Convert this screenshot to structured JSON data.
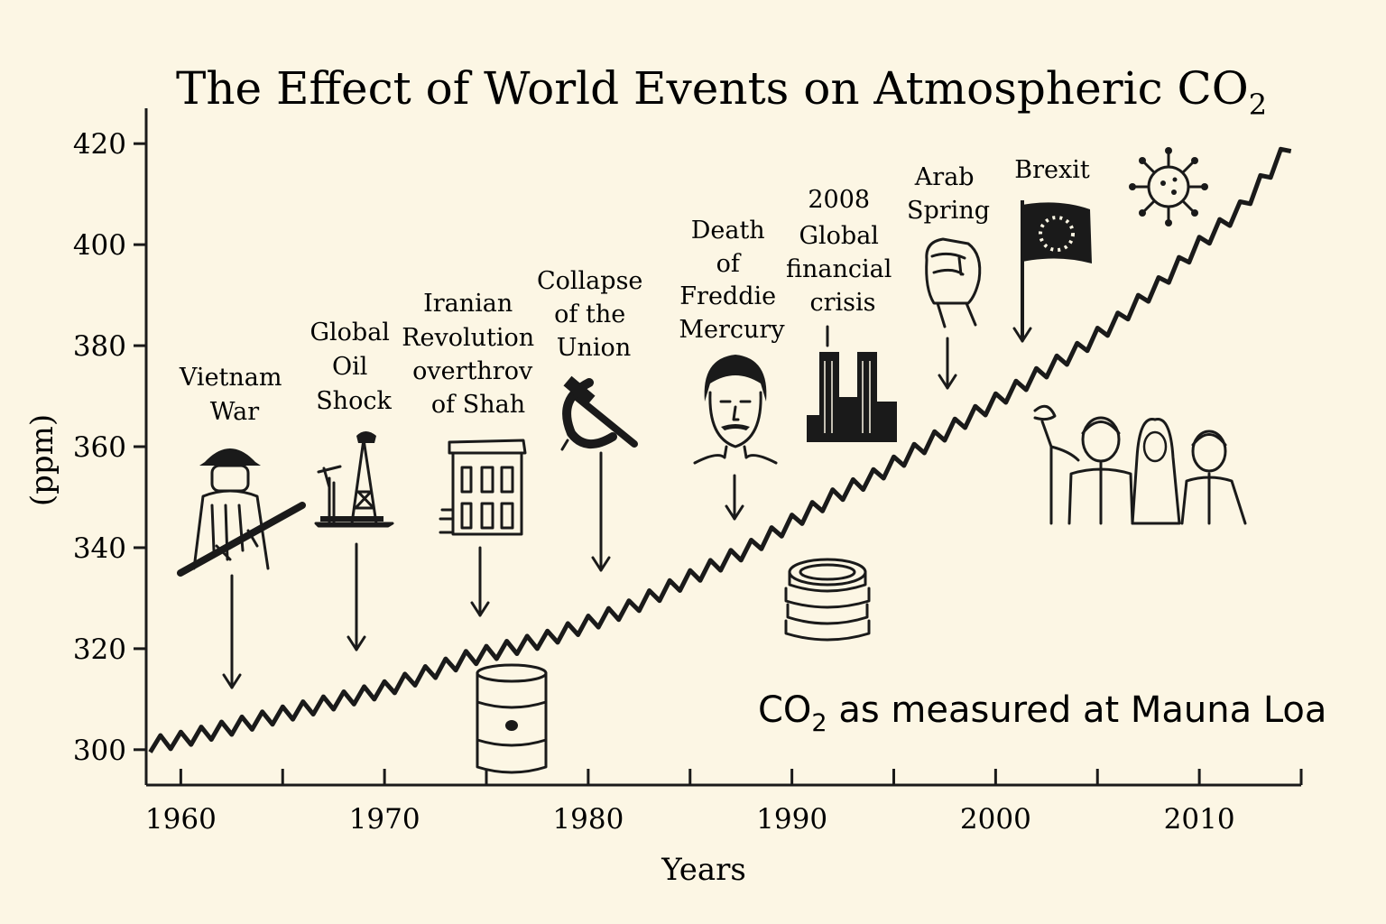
{
  "chart_data": {
    "type": "line",
    "title": {
      "main": "The Effect of World Events on Atmospheric CO",
      "sub": "2"
    },
    "xlabel": "Years",
    "ylabel": "(ppm)",
    "xlim": [
      1958.3,
      2015.0
    ],
    "ylim": [
      293,
      427
    ],
    "x_ticks": [
      1960,
      1970,
      1980,
      1990,
      2000,
      2010
    ],
    "y_ticks": [
      300,
      320,
      340,
      360,
      380,
      400,
      420
    ],
    "grid": false,
    "annotation": {
      "prefix": "CO",
      "sub": "2",
      "suffix": " as measured at Mauna Loa"
    },
    "series": [
      {
        "x": [
          1958.5,
          1960,
          1962,
          1964,
          1966,
          1968,
          1970,
          1972,
          1974,
          1976,
          1978,
          1980,
          1982,
          1984,
          1986,
          1988,
          1990,
          1992,
          1994,
          1996,
          1998,
          2000,
          2002,
          2004,
          2006,
          2008,
          2010,
          2012,
          2014.5
        ],
        "y": [
          301,
          302,
          304,
          306,
          308,
          310,
          312,
          315,
          318,
          320,
          322,
          325,
          328,
          332,
          336,
          340,
          345,
          350,
          354,
          359,
          364,
          369,
          374,
          379,
          385,
          392,
          400,
          407,
          420
        ],
        "seasonal_amplitude_ppm": 3,
        "cycle_years": 1
      }
    ],
    "events": [
      {
        "lines": [
          "Vietnam",
          "War"
        ],
        "icon": "soldier-icon"
      },
      {
        "lines": [
          "Global",
          "Oil",
          "Shock"
        ],
        "icon": "oil-derrick-icon"
      },
      {
        "lines": [
          "Iranian",
          "Revolution",
          "overthrov",
          "of Shah"
        ],
        "icon": "building-icon"
      },
      {
        "lines": [
          "Collapse",
          "of the",
          "Union"
        ],
        "icon": "hammer-sickle-icon"
      },
      {
        "lines": [
          "Death",
          "of",
          "Freddie",
          "Mercury"
        ],
        "icon": "portrait-icon"
      },
      {
        "lines": [
          "2008",
          "Global",
          "financial",
          "crisis"
        ],
        "icon": "towers-icon"
      },
      {
        "lines": [
          "Arab",
          "Spring"
        ],
        "icon": "raised-fist-icon"
      },
      {
        "lines": [
          "Brexit"
        ],
        "icon": "flag-icon"
      }
    ],
    "decorations": [
      "virus-icon",
      "protesters-icon",
      "oil-barrel-icon",
      "coin-stack-icon"
    ]
  }
}
